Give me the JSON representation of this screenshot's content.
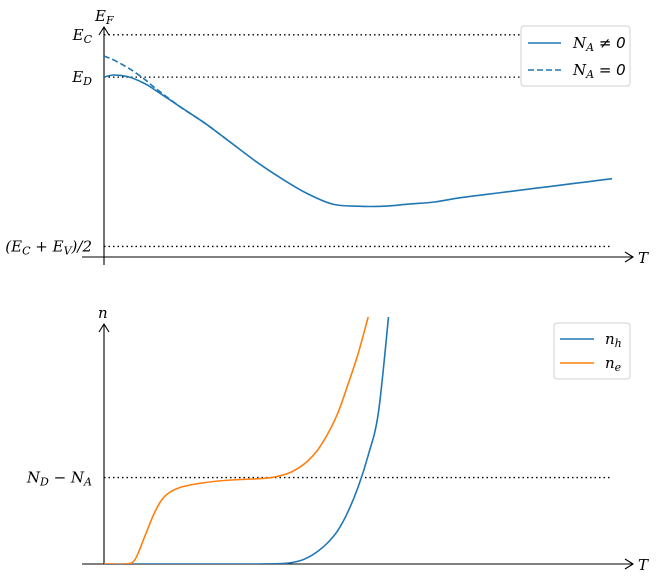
{
  "chart_data": [
    {
      "type": "line",
      "title": "",
      "xlabel": "T",
      "ylabel": "E_F",
      "xlim": [
        0,
        1
      ],
      "ylim": [
        -0.05,
        1.07
      ],
      "ref_lines": [
        {
          "label_main": "E",
          "label_sub": "C",
          "value": 1.0
        },
        {
          "label_main": "E",
          "label_sub": "D",
          "value": 0.8
        },
        {
          "label_main": "(E",
          "label_sub": "C",
          "label_mid": " + E",
          "label_sub2": "V",
          "label_end": ")/2",
          "value": 0.0
        }
      ],
      "legend": {
        "placement": "top-right",
        "entries": [
          {
            "main": "N",
            "sub": "A",
            "rel": " ≠ 0",
            "style": "solid"
          },
          {
            "main": "N",
            "sub": "A",
            "rel": " = 0",
            "style": "dashed"
          }
        ]
      },
      "series": [
        {
          "name": "N_A ≠ 0",
          "color": "#1f77b4",
          "style": "solid",
          "x": [
            0.0,
            0.02,
            0.05,
            0.08,
            0.1,
            0.15,
            0.2,
            0.25,
            0.3,
            0.35,
            0.4,
            0.45,
            0.5,
            0.55,
            0.6,
            0.65,
            0.7,
            0.75,
            0.8,
            0.85,
            0.9,
            0.95,
            1.0
          ],
          "y": [
            0.8,
            0.81,
            0.8,
            0.77,
            0.74,
            0.66,
            0.58,
            0.49,
            0.4,
            0.32,
            0.25,
            0.2,
            0.19,
            0.19,
            0.2,
            0.21,
            0.23,
            0.245,
            0.26,
            0.275,
            0.29,
            0.305,
            0.32
          ]
        },
        {
          "name": "N_A = 0",
          "color": "#1f77b4",
          "style": "dashed",
          "x": [
            0.0,
            0.02,
            0.05,
            0.08,
            0.1,
            0.15,
            0.2,
            0.25
          ],
          "y": [
            0.9,
            0.88,
            0.84,
            0.79,
            0.75,
            0.66,
            0.58,
            0.49
          ]
        }
      ]
    },
    {
      "type": "line",
      "title": "",
      "xlabel": "T",
      "ylabel": "n",
      "xlim": [
        0,
        1
      ],
      "ylim": [
        0,
        2.0
      ],
      "ref_lines": [
        {
          "label_main": "N",
          "label_sub": "D",
          "label_mid": " − N",
          "label_sub2": "A",
          "label_end": "",
          "value": 0.7
        }
      ],
      "legend": {
        "placement": "top-right",
        "entries": [
          {
            "main": "n",
            "sub": "h",
            "rel": "",
            "style": "solid"
          },
          {
            "main": "n",
            "sub": "e",
            "rel": "",
            "style": "solid"
          }
        ]
      },
      "series": [
        {
          "name": "n_h",
          "color": "#1f77b4",
          "style": "solid",
          "x": [
            0.0,
            0.2,
            0.3,
            0.35,
            0.38,
            0.4,
            0.42,
            0.44,
            0.46,
            0.48,
            0.5,
            0.52,
            0.54,
            0.56
          ],
          "y": [
            0.0,
            0.0,
            0.0,
            0.003,
            0.02,
            0.05,
            0.1,
            0.17,
            0.27,
            0.42,
            0.62,
            0.88,
            1.22,
            2.0
          ]
        },
        {
          "name": "n_e",
          "color": "#ff7f0e",
          "style": "solid",
          "x": [
            0.0,
            0.04,
            0.06,
            0.08,
            0.1,
            0.12,
            0.15,
            0.2,
            0.25,
            0.3,
            0.33,
            0.36,
            0.38,
            0.4,
            0.42,
            0.44,
            0.46,
            0.48,
            0.5,
            0.52
          ],
          "y": [
            0.0,
            0.0,
            0.03,
            0.22,
            0.42,
            0.55,
            0.62,
            0.66,
            0.68,
            0.69,
            0.7,
            0.73,
            0.77,
            0.83,
            0.92,
            1.05,
            1.22,
            1.45,
            1.7,
            2.0
          ]
        }
      ]
    }
  ]
}
